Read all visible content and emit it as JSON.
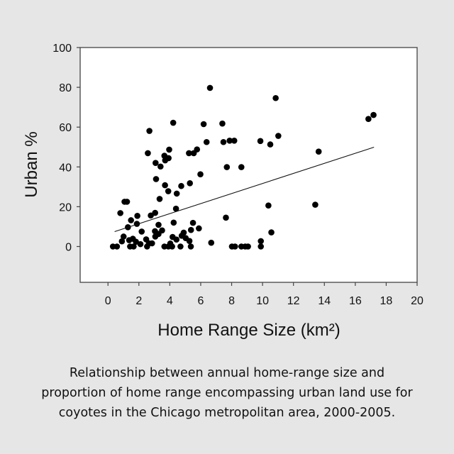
{
  "chart_data": {
    "type": "scatter",
    "title": "",
    "xlabel": "Home Range Size (km²)",
    "ylabel": "Urban %",
    "xlim": [
      -1.8,
      20
    ],
    "ylim": [
      -18,
      100
    ],
    "xticks": [
      0,
      2,
      4,
      6,
      8,
      10,
      12,
      14,
      16,
      18,
      20
    ],
    "yticks": [
      0,
      20,
      40,
      60,
      80,
      100
    ],
    "grid": false,
    "points": [
      [
        0.32,
        0
      ],
      [
        0.58,
        0
      ],
      [
        6.6,
        79.7
      ],
      [
        4.22,
        62.2
      ],
      [
        6.19,
        61.5
      ],
      [
        7.4,
        61.8
      ],
      [
        2.68,
        58.1
      ],
      [
        6.38,
        52.5
      ],
      [
        7.47,
        52.5
      ],
      [
        7.87,
        53.2
      ],
      [
        8.17,
        53.2
      ],
      [
        9.86,
        53.0
      ],
      [
        2.58,
        46.9
      ],
      [
        3.96,
        48.7
      ],
      [
        3.65,
        45.6
      ],
      [
        3.92,
        44.4
      ],
      [
        3.7,
        43.3
      ],
      [
        5.24,
        46.9
      ],
      [
        5.55,
        46.9
      ],
      [
        5.76,
        48.8
      ],
      [
        3.08,
        42
      ],
      [
        3.4,
        40.2
      ],
      [
        7.69,
        39.9
      ],
      [
        8.63,
        39.9
      ],
      [
        5.98,
        36.3
      ],
      [
        3.11,
        33.9
      ],
      [
        3.69,
        30.8
      ],
      [
        4.74,
        30.4
      ],
      [
        5.3,
        31.8
      ],
      [
        3.9,
        27.8
      ],
      [
        4.45,
        26.6
      ],
      [
        3.34,
        23.9
      ],
      [
        1.07,
        22.5
      ],
      [
        1.23,
        22.5
      ],
      [
        4.4,
        19
      ],
      [
        0.8,
        16.8
      ],
      [
        3.05,
        16.9
      ],
      [
        2.77,
        15.6
      ],
      [
        1.49,
        13.2
      ],
      [
        1.9,
        15.4
      ],
      [
        1.87,
        11.4
      ],
      [
        4.25,
        12
      ],
      [
        5.5,
        11.9
      ],
      [
        7.63,
        14.5
      ],
      [
        1.29,
        9.7
      ],
      [
        2.18,
        7.5
      ],
      [
        3.27,
        10.9
      ],
      [
        3.04,
        7.7
      ],
      [
        3.5,
        8.1
      ],
      [
        3.27,
        6.3
      ],
      [
        3.06,
        5
      ],
      [
        5.88,
        9.1
      ],
      [
        5.37,
        8.3
      ],
      [
        4.9,
        7
      ],
      [
        1.01,
        5
      ],
      [
        0.9,
        2.6
      ],
      [
        1.61,
        3.9
      ],
      [
        1.37,
        3.2
      ],
      [
        1.81,
        2.4
      ],
      [
        2.47,
        3.6
      ],
      [
        4.18,
        4.8
      ],
      [
        4.43,
        3.5
      ],
      [
        4.77,
        5.4
      ],
      [
        5.03,
        4.2
      ],
      [
        5.27,
        2.8
      ],
      [
        6.68,
        1.9
      ],
      [
        2.1,
        1.2
      ],
      [
        2.65,
        1.6
      ],
      [
        2.85,
        1.6
      ],
      [
        4.03,
        1.5
      ],
      [
        1.43,
        0
      ],
      [
        1.66,
        0
      ],
      [
        2.53,
        0
      ],
      [
        3.65,
        0
      ],
      [
        3.91,
        0
      ],
      [
        4.15,
        0
      ],
      [
        4.69,
        0
      ],
      [
        5.36,
        0
      ],
      [
        8.02,
        0
      ],
      [
        8.22,
        0
      ],
      [
        8.63,
        0
      ],
      [
        8.88,
        0
      ],
      [
        9.06,
        0
      ],
      [
        9.89,
        2.7
      ],
      [
        9.89,
        0
      ],
      [
        10.85,
        74.6
      ],
      [
        17.18,
        66.1
      ],
      [
        16.85,
        64.1
      ],
      [
        10.5,
        51.3
      ],
      [
        11.02,
        55.6
      ],
      [
        13.63,
        47.7
      ],
      [
        10.38,
        20.6
      ],
      [
        13.41,
        21
      ],
      [
        10.57,
        7.1
      ]
    ],
    "trendline": {
      "x": [
        0.43,
        17.21
      ],
      "y": [
        7.5,
        49.9
      ]
    }
  },
  "caption": [
    "Relationship between annual home-range size and",
    "proportion of home range encompassing urban land use for",
    "coyotes in the Chicago metropolitan area, 2000-2005."
  ]
}
